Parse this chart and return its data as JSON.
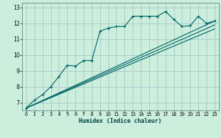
{
  "xlabel": "Humidex (Indice chaleur)",
  "background_color": "#cceedd",
  "grid_color": "#aacccc",
  "line_color": "#006666",
  "xlim": [
    -0.5,
    23.5
  ],
  "ylim": [
    6.5,
    13.3
  ],
  "xticks": [
    0,
    1,
    2,
    3,
    4,
    5,
    6,
    7,
    8,
    9,
    10,
    11,
    12,
    13,
    14,
    15,
    16,
    17,
    18,
    19,
    20,
    21,
    22,
    23
  ],
  "yticks": [
    7,
    8,
    9,
    10,
    11,
    12,
    13
  ],
  "main_x": [
    0,
    1,
    2,
    3,
    4,
    5,
    6,
    7,
    8,
    9,
    10,
    11,
    12,
    13,
    14,
    15,
    16,
    17,
    18,
    19,
    20,
    21,
    22,
    23
  ],
  "main_y": [
    6.65,
    7.15,
    7.5,
    8.0,
    8.65,
    9.35,
    9.3,
    9.65,
    9.65,
    11.5,
    11.7,
    11.8,
    11.8,
    12.45,
    12.45,
    12.45,
    12.45,
    12.75,
    12.25,
    11.8,
    11.85,
    12.45,
    12.0,
    12.15
  ],
  "line1_x": [
    0,
    23
  ],
  "line1_y": [
    6.65,
    12.15
  ],
  "line2_x": [
    0,
    23
  ],
  "line2_y": [
    6.65,
    11.9
  ],
  "line3_x": [
    0,
    23
  ],
  "line3_y": [
    6.65,
    11.65
  ]
}
